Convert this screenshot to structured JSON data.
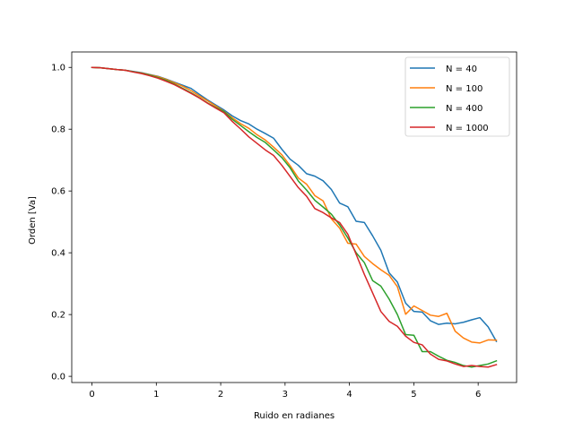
{
  "chart_data": {
    "type": "line",
    "title": "",
    "xlabel": "Ruido en radianes",
    "ylabel": "Orden [Va]",
    "xlim": [
      -0.314,
      6.597
    ],
    "ylim": [
      -0.02,
      1.05
    ],
    "xticks": [
      0,
      1,
      2,
      3,
      4,
      5,
      6
    ],
    "xtick_labels": [
      "0",
      "1",
      "2",
      "3",
      "4",
      "5",
      "6"
    ],
    "yticks": [
      0.0,
      0.2,
      0.4,
      0.6,
      0.8,
      1.0
    ],
    "ytick_labels": [
      "0.0",
      "0.2",
      "0.4",
      "0.6",
      "0.8",
      "1.0"
    ],
    "grid": false,
    "legend_position": "top-right",
    "x": [
      0.0,
      0.128,
      0.256,
      0.385,
      0.513,
      0.641,
      0.769,
      0.898,
      1.026,
      1.154,
      1.282,
      1.411,
      1.539,
      1.667,
      1.795,
      1.924,
      2.052,
      2.18,
      2.308,
      2.437,
      2.565,
      2.693,
      2.821,
      2.95,
      3.078,
      3.206,
      3.334,
      3.462,
      3.591,
      3.719,
      3.847,
      3.975,
      4.104,
      4.232,
      4.36,
      4.488,
      4.617,
      4.745,
      4.873,
      5.001,
      5.13,
      5.258,
      5.386,
      5.514,
      5.643,
      5.771,
      5.899,
      6.027,
      6.155,
      6.283
    ],
    "series": [
      {
        "name": "N = 40",
        "color": "#1f77b4",
        "values": [
          1.0,
          0.999,
          0.996,
          0.993,
          0.991,
          0.987,
          0.983,
          0.977,
          0.971,
          0.962,
          0.952,
          0.942,
          0.932,
          0.913,
          0.895,
          0.878,
          0.862,
          0.843,
          0.828,
          0.817,
          0.8,
          0.786,
          0.771,
          0.735,
          0.703,
          0.683,
          0.656,
          0.648,
          0.633,
          0.605,
          0.561,
          0.549,
          0.502,
          0.498,
          0.455,
          0.408,
          0.335,
          0.305,
          0.237,
          0.21,
          0.208,
          0.18,
          0.168,
          0.172,
          0.17,
          0.175,
          0.183,
          0.19,
          0.16,
          0.113
        ]
      },
      {
        "name": "N = 100",
        "color": "#ff7f0e",
        "values": [
          1.0,
          0.999,
          0.996,
          0.993,
          0.991,
          0.986,
          0.982,
          0.976,
          0.97,
          0.961,
          0.95,
          0.939,
          0.925,
          0.908,
          0.892,
          0.875,
          0.858,
          0.837,
          0.818,
          0.803,
          0.782,
          0.765,
          0.742,
          0.717,
          0.682,
          0.642,
          0.622,
          0.585,
          0.568,
          0.51,
          0.48,
          0.431,
          0.428,
          0.388,
          0.365,
          0.345,
          0.327,
          0.29,
          0.201,
          0.228,
          0.213,
          0.198,
          0.194,
          0.204,
          0.146,
          0.124,
          0.111,
          0.108,
          0.118,
          0.117
        ]
      },
      {
        "name": "N = 400",
        "color": "#2ca02c",
        "values": [
          1.0,
          0.999,
          0.996,
          0.993,
          0.991,
          0.986,
          0.981,
          0.975,
          0.967,
          0.958,
          0.946,
          0.932,
          0.918,
          0.902,
          0.885,
          0.87,
          0.857,
          0.832,
          0.812,
          0.792,
          0.773,
          0.757,
          0.733,
          0.708,
          0.675,
          0.632,
          0.603,
          0.57,
          0.548,
          0.525,
          0.49,
          0.448,
          0.4,
          0.368,
          0.31,
          0.292,
          0.25,
          0.2,
          0.135,
          0.133,
          0.08,
          0.08,
          0.065,
          0.052,
          0.045,
          0.035,
          0.03,
          0.035,
          0.04,
          0.05
        ]
      },
      {
        "name": "N = 1000",
        "color": "#d62728",
        "values": [
          1.0,
          0.999,
          0.996,
          0.993,
          0.991,
          0.985,
          0.98,
          0.973,
          0.965,
          0.955,
          0.944,
          0.93,
          0.916,
          0.901,
          0.884,
          0.868,
          0.853,
          0.825,
          0.801,
          0.775,
          0.754,
          0.733,
          0.715,
          0.683,
          0.647,
          0.611,
          0.583,
          0.543,
          0.53,
          0.513,
          0.498,
          0.46,
          0.395,
          0.33,
          0.27,
          0.21,
          0.178,
          0.162,
          0.13,
          0.11,
          0.102,
          0.072,
          0.055,
          0.05,
          0.04,
          0.032,
          0.035,
          0.032,
          0.03,
          0.038
        ]
      }
    ]
  }
}
